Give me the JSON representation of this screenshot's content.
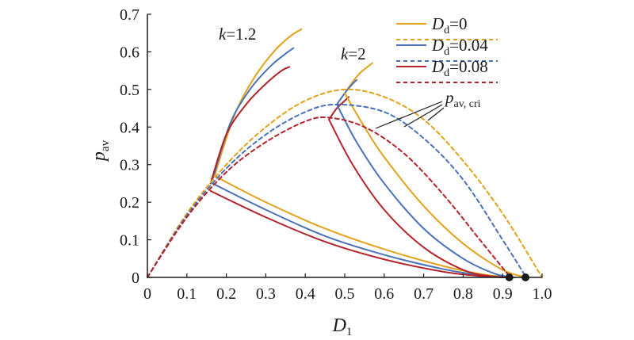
{
  "colors": {
    "Dd_0": "#e3a21a",
    "Dd_0.04": "#4a72b8",
    "Dd_0.08": "#b3232b",
    "axis": "#1a1a1a"
  },
  "chart_data": {
    "type": "line",
    "xlabel": {
      "main": "D",
      "sub": "1"
    },
    "ylabel": {
      "main": "p",
      "sub": "av"
    },
    "xlim": [
      0,
      1.0
    ],
    "ylim": [
      0,
      0.7
    ],
    "xticks": [
      "0",
      "0.1",
      "0.2",
      "0.3",
      "0.4",
      "0.5",
      "0.6",
      "0.7",
      "0.8",
      "0.9",
      "1.0"
    ],
    "yticks": [
      "0",
      "0.1",
      "0.2",
      "0.3",
      "0.4",
      "0.5",
      "0.6",
      "0.7"
    ],
    "grid": false,
    "legend_position": "top-right",
    "legend": [
      {
        "label_main": "D",
        "label_sub": "d",
        "label_val": "=0",
        "key": "Dd_0"
      },
      {
        "label_main": "D",
        "label_sub": "d",
        "label_val": "=0.04",
        "key": "Dd_0.04"
      },
      {
        "label_main": "D",
        "label_sub": "d",
        "label_val": "=0.08",
        "key": "Dd_0.08"
      }
    ],
    "annotations": {
      "k12": {
        "k": "k",
        "val": "=1.2"
      },
      "k2": {
        "k": "k",
        "val": "=2"
      },
      "pcri": {
        "main": "p",
        "sub": "av, cri"
      }
    },
    "series": [
      {
        "key": "Dd_0",
        "group": "k=1.2",
        "style": "solid",
        "x": [
          0.17,
          0.22,
          0.27,
          0.32,
          0.36,
          0.39
        ],
        "y": [
          0.27,
          0.43,
          0.53,
          0.6,
          0.64,
          0.66
        ]
      },
      {
        "key": "Dd_0.04",
        "group": "k=1.2",
        "style": "solid",
        "x": [
          0.165,
          0.21,
          0.26,
          0.31,
          0.35,
          0.37
        ],
        "y": [
          0.26,
          0.41,
          0.5,
          0.56,
          0.595,
          0.61
        ]
      },
      {
        "key": "Dd_0.08",
        "group": "k=1.2",
        "style": "solid",
        "x": [
          0.16,
          0.2,
          0.25,
          0.3,
          0.34,
          0.36
        ],
        "y": [
          0.25,
          0.38,
          0.46,
          0.515,
          0.55,
          0.56
        ]
      },
      {
        "key": "Dd_0",
        "group": "k=1.2 low",
        "style": "solid",
        "x": [
          0.17,
          0.3,
          0.45,
          0.6,
          0.75,
          0.85,
          0.93
        ],
        "y": [
          0.27,
          0.2,
          0.13,
          0.075,
          0.03,
          0.008,
          0.0
        ]
      },
      {
        "key": "Dd_0.04",
        "group": "k=1.2 low",
        "style": "solid",
        "x": [
          0.165,
          0.3,
          0.45,
          0.6,
          0.75,
          0.85,
          0.92
        ],
        "y": [
          0.25,
          0.18,
          0.11,
          0.06,
          0.022,
          0.005,
          0.0
        ]
      },
      {
        "key": "Dd_0.08",
        "group": "k=1.2 low",
        "style": "solid",
        "x": [
          0.16,
          0.3,
          0.45,
          0.6,
          0.75,
          0.85,
          0.91
        ],
        "y": [
          0.23,
          0.16,
          0.095,
          0.048,
          0.015,
          0.003,
          0.0
        ]
      },
      {
        "key": "Dd_0",
        "group": "k=2",
        "style": "solid",
        "x": [
          0.5,
          0.52,
          0.54,
          0.56,
          0.57
        ],
        "y": [
          0.49,
          0.52,
          0.545,
          0.562,
          0.57
        ]
      },
      {
        "key": "Dd_0.04",
        "group": "k=2",
        "style": "solid",
        "x": [
          0.48,
          0.5,
          0.52,
          0.53
        ],
        "y": [
          0.46,
          0.49,
          0.515,
          0.525
        ]
      },
      {
        "key": "Dd_0.08",
        "group": "k=2",
        "style": "solid",
        "x": [
          0.46,
          0.48,
          0.5,
          0.51
        ],
        "y": [
          0.42,
          0.45,
          0.47,
          0.48
        ]
      },
      {
        "key": "Dd_0",
        "group": "k=2 low",
        "style": "solid",
        "x": [
          0.5,
          0.55,
          0.6,
          0.7,
          0.8,
          0.9,
          0.96
        ],
        "y": [
          0.49,
          0.4,
          0.32,
          0.19,
          0.09,
          0.02,
          0.0
        ]
      },
      {
        "key": "Dd_0.04",
        "group": "k=2 low",
        "style": "solid",
        "x": [
          0.48,
          0.53,
          0.6,
          0.7,
          0.8,
          0.88,
          0.93
        ],
        "y": [
          0.46,
          0.36,
          0.25,
          0.13,
          0.05,
          0.01,
          0.0
        ]
      },
      {
        "key": "Dd_0.08",
        "group": "k=2 low",
        "style": "solid",
        "x": [
          0.46,
          0.52,
          0.6,
          0.7,
          0.8,
          0.87,
          0.91
        ],
        "y": [
          0.42,
          0.3,
          0.18,
          0.08,
          0.02,
          0.003,
          0.0
        ]
      },
      {
        "key": "Dd_0",
        "group": "critical",
        "style": "dashed",
        "x": [
          0.0,
          0.1,
          0.2,
          0.3,
          0.4,
          0.5,
          0.6,
          0.7,
          0.8,
          0.9,
          1.0
        ],
        "y": [
          0.0,
          0.17,
          0.3,
          0.4,
          0.47,
          0.5,
          0.48,
          0.42,
          0.31,
          0.17,
          0.0
        ]
      },
      {
        "key": "Dd_0.04",
        "group": "critical",
        "style": "dashed",
        "x": [
          0.0,
          0.1,
          0.2,
          0.3,
          0.4,
          0.48,
          0.6,
          0.7,
          0.8,
          0.9,
          0.96
        ],
        "y": [
          0.0,
          0.165,
          0.29,
          0.38,
          0.44,
          0.46,
          0.44,
          0.37,
          0.26,
          0.1,
          0.0
        ]
      },
      {
        "key": "Dd_0.08",
        "group": "critical",
        "style": "dashed",
        "x": [
          0.0,
          0.1,
          0.2,
          0.3,
          0.4,
          0.46,
          0.55,
          0.65,
          0.75,
          0.85,
          0.92
        ],
        "y": [
          0.0,
          0.16,
          0.28,
          0.36,
          0.415,
          0.425,
          0.4,
          0.33,
          0.22,
          0.09,
          0.0
        ]
      }
    ],
    "markers": [
      {
        "x": 0.917,
        "y": 0.0
      },
      {
        "x": 0.958,
        "y": 0.0
      }
    ]
  }
}
